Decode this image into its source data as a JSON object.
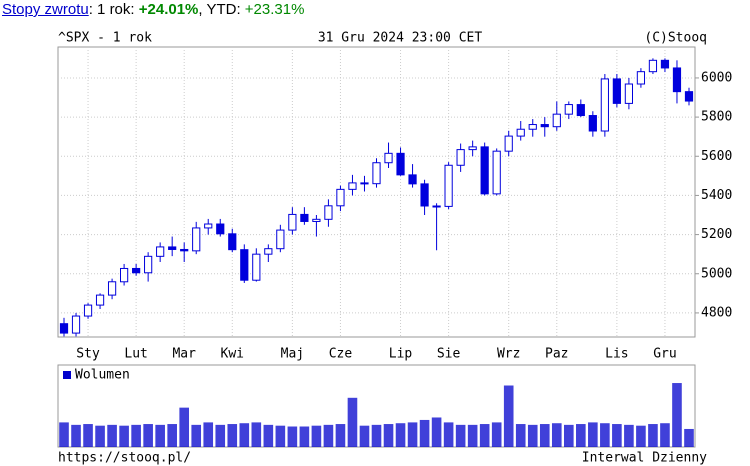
{
  "header": {
    "link": "Stopy zwrotu",
    "label_1y": ": 1 rok:",
    "return_1y": "+24.01%",
    "label_ytd": ", YTD:",
    "return_ytd": "+23.31%"
  },
  "chart_data": {
    "type": "candlestick",
    "title": "^SPX - 1 rok",
    "subtitle": "31 Gru 2024 23:00 CET",
    "source": "(C)Stooq",
    "footer_left": "https://stooq.pl/",
    "footer_right": "Interwal Dzienny",
    "color": "#0000dd",
    "categories": [
      null,
      null,
      "Sty",
      null,
      null,
      null,
      "Lut",
      null,
      null,
      null,
      "Mar",
      null,
      null,
      null,
      "Kwi",
      null,
      null,
      null,
      null,
      "Maj",
      null,
      null,
      null,
      "Cze",
      null,
      null,
      null,
      null,
      "Lip",
      null,
      null,
      null,
      "Sie",
      null,
      null,
      null,
      null,
      "Wrz",
      null,
      null,
      null,
      "Paz",
      null,
      null,
      null,
      null,
      "Lis",
      null,
      null,
      null,
      "Gru",
      null,
      null
    ],
    "open": [
      4745,
      4697,
      4784,
      4840,
      4891,
      4959,
      5027,
      5005,
      5089,
      5137,
      5124,
      5117,
      5234,
      5254,
      5204,
      5123,
      4967,
      5100,
      5128,
      5223,
      5303,
      5267,
      5278,
      5347,
      5431,
      5464,
      5460,
      5567,
      5615,
      5505,
      5459,
      5346,
      5344,
      5554,
      5634,
      5648,
      5408,
      5626,
      5703,
      5738,
      5762,
      5751,
      5815,
      5864,
      5808,
      5729,
      5995,
      5870,
      5969,
      6032,
      6090,
      6051,
      5930
    ],
    "high": [
      4775,
      4800,
      4850,
      4900,
      4975,
      5050,
      5050,
      5110,
      5160,
      5190,
      5160,
      5265,
      5280,
      5280,
      5230,
      5150,
      5130,
      5150,
      5250,
      5340,
      5340,
      5300,
      5380,
      5450,
      5505,
      5500,
      5590,
      5670,
      5645,
      5560,
      5480,
      5360,
      5570,
      5665,
      5680,
      5670,
      5640,
      5730,
      5780,
      5790,
      5800,
      5880,
      5880,
      5890,
      5830,
      6020,
      6020,
      6000,
      6050,
      6100,
      6100,
      6090,
      5950
    ],
    "low": [
      4680,
      4680,
      4770,
      4820,
      4870,
      4940,
      4990,
      4960,
      5060,
      5090,
      5060,
      5100,
      5200,
      5190,
      5110,
      4953,
      4960,
      5060,
      5110,
      5200,
      5250,
      5190,
      5240,
      5320,
      5400,
      5420,
      5440,
      5540,
      5500,
      5440,
      5300,
      5120,
      5330,
      5520,
      5600,
      5400,
      5400,
      5600,
      5680,
      5700,
      5700,
      5730,
      5790,
      5800,
      5700,
      5700,
      5850,
      5840,
      5950,
      6020,
      6030,
      5870,
      5860
    ],
    "close": [
      4697,
      4784,
      4840,
      4891,
      4959,
      5027,
      5005,
      5089,
      5137,
      5124,
      5117,
      5234,
      5254,
      5204,
      5123,
      4967,
      5100,
      5128,
      5223,
      5303,
      5267,
      5278,
      5347,
      5431,
      5464,
      5460,
      5567,
      5615,
      5505,
      5459,
      5346,
      5344,
      5554,
      5634,
      5648,
      5408,
      5626,
      5703,
      5738,
      5762,
      5751,
      5815,
      5864,
      5808,
      5729,
      5995,
      5870,
      5969,
      6032,
      6090,
      6051,
      5930,
      5882
    ],
    "ylim": [
      4677,
      6158
    ],
    "yticks": [
      4800,
      5000,
      5200,
      5400,
      5600,
      5800,
      6000
    ],
    "grid": true,
    "volume": {
      "name": "Wolumen",
      "color": "#0000cc",
      "ylim": [
        0,
        100
      ],
      "values": [
        30,
        27,
        28,
        26,
        27,
        26,
        27,
        28,
        27,
        28,
        48,
        27,
        30,
        27,
        28,
        29,
        30,
        27,
        26,
        25,
        25,
        26,
        27,
        28,
        60,
        26,
        27,
        28,
        29,
        30,
        33,
        36,
        30,
        27,
        27,
        28,
        30,
        75,
        28,
        27,
        28,
        29,
        27,
        28,
        30,
        29,
        28,
        27,
        26,
        28,
        29,
        78,
        22
      ]
    }
  }
}
